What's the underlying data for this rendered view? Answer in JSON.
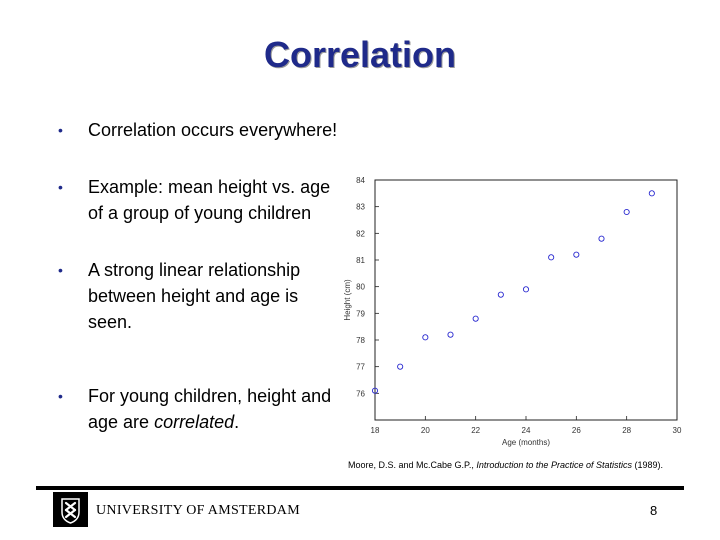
{
  "slide": {
    "title": "Correlation",
    "bullets": [
      "Correlation occurs everywhere!",
      "Example: mean height vs. age of a group of young children",
      "A strong linear relationship between height and age is seen."
    ],
    "bullet_symbol": "•",
    "last_bullet_prefix": "For young children, height and age are ",
    "last_bullet_emph": "correlated",
    "last_bullet_suffix": "."
  },
  "citation": {
    "prefix": "Moore, D.S. and Mc.Cabe G.P., ",
    "title": "Introduction to the Practice of Statistics",
    "suffix": " (1989)."
  },
  "footer": {
    "university": "UNIVERSITY OF AMSTERDAM",
    "page_number": "8"
  },
  "chart_data": {
    "type": "scatter",
    "title": "",
    "xlabel": "Age (months)",
    "ylabel": "Height (cm)",
    "xlim": [
      18,
      30
    ],
    "ylim": [
      75,
      84
    ],
    "xticks": [
      "18",
      "20",
      "22",
      "24",
      "26",
      "28",
      "30"
    ],
    "yticks": [
      "76",
      "77",
      "78",
      "79",
      "80",
      "81",
      "82",
      "83",
      "84"
    ],
    "x": [
      18,
      19,
      20,
      21,
      22,
      23,
      24,
      25,
      26,
      27,
      28,
      29
    ],
    "y": [
      76.1,
      77.0,
      78.1,
      78.2,
      78.8,
      79.7,
      79.9,
      81.1,
      81.2,
      81.8,
      82.8,
      83.5
    ],
    "marker_color": "#2a2ad0",
    "grid": false
  }
}
